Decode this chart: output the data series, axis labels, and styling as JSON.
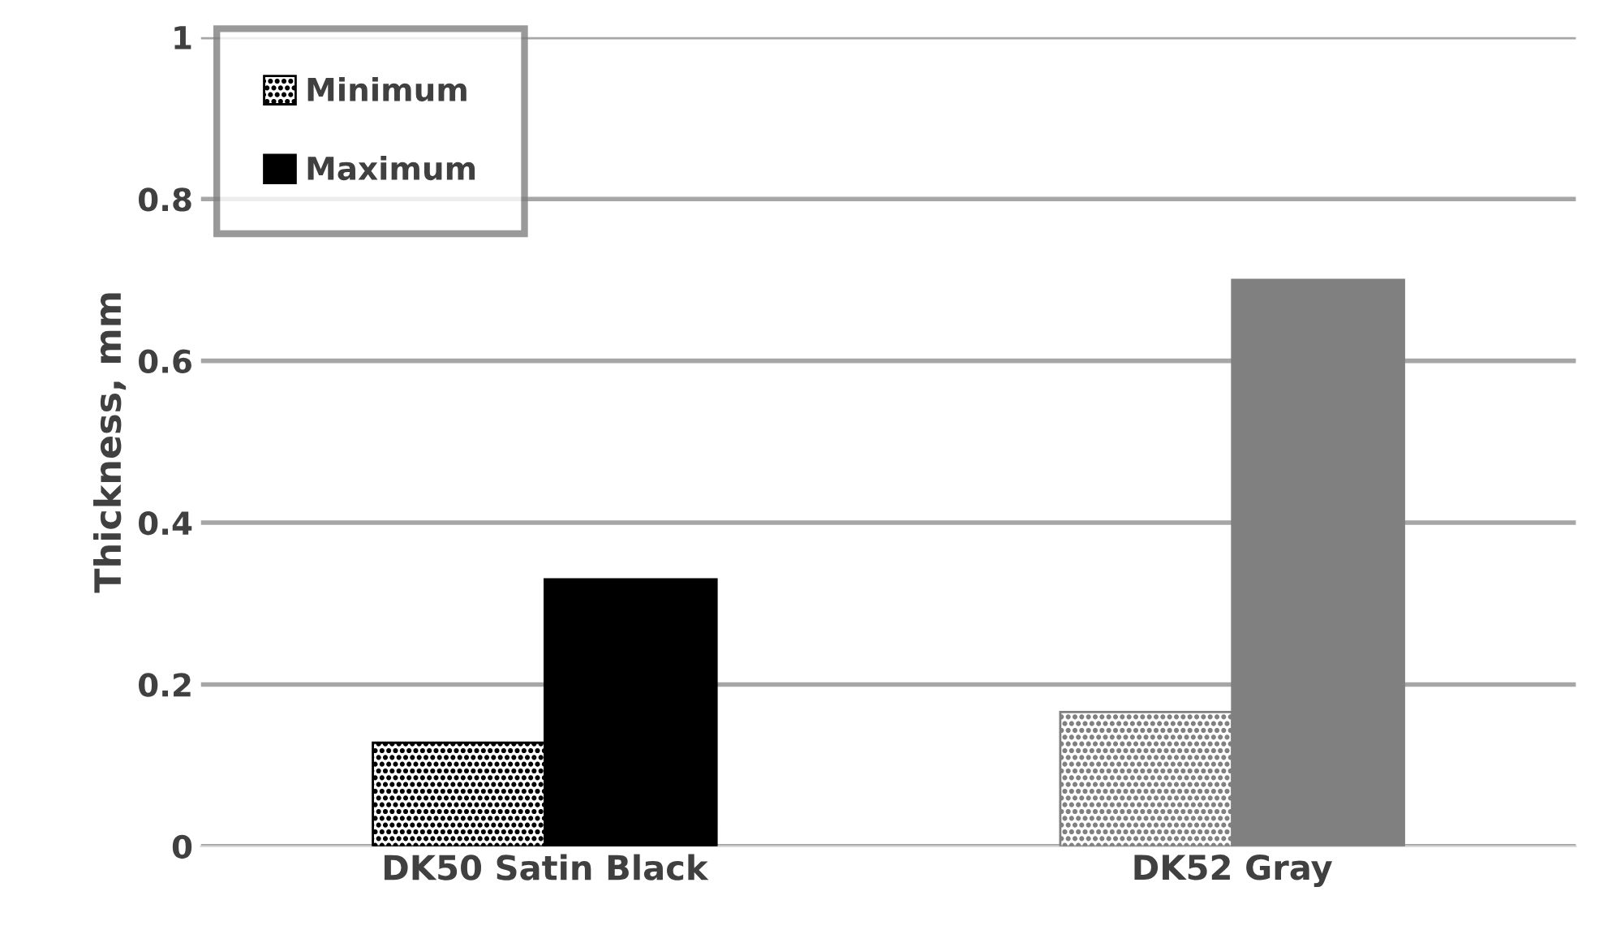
{
  "chart_data": {
    "type": "bar",
    "ylabel": "Thickness, mm",
    "categories": [
      "DK50 Satin Black",
      "DK52 Gray"
    ],
    "series": [
      {
        "name": "Minimum",
        "colors": [
          "#000000",
          "#808080"
        ],
        "values": [
          0.128,
          0.166
        ]
      },
      {
        "name": "Maximum",
        "colors": [
          "#000000",
          "#808080"
        ],
        "values": [
          0.33,
          0.7
        ]
      }
    ],
    "ylim": [
      0,
      1
    ],
    "yticks": [
      0,
      0.2,
      0.4,
      0.6,
      0.8,
      1
    ],
    "grid": "y",
    "legend": "top left"
  }
}
